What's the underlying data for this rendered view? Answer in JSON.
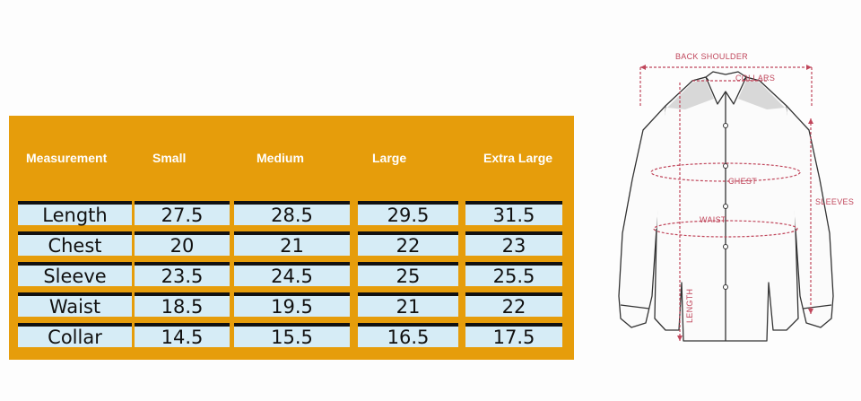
{
  "size_chart": {
    "headers": [
      "Measurement",
      "Small",
      "Medium",
      "Large",
      "Extra Large"
    ],
    "rows": [
      {
        "label": "Length",
        "values": [
          "27.5",
          "28.5",
          "29.5",
          "31.5"
        ]
      },
      {
        "label": "Chest",
        "values": [
          "20",
          "21",
          "22",
          "23"
        ]
      },
      {
        "label": "Sleeve",
        "values": [
          "23.5",
          "24.5",
          "25",
          "25.5"
        ]
      },
      {
        "label": "Waist",
        "values": [
          "18.5",
          "19.5",
          "21",
          "22"
        ]
      },
      {
        "label": "Collar",
        "values": [
          "14.5",
          "15.5",
          "16.5",
          "17.5"
        ]
      }
    ]
  },
  "diagram": {
    "labels": {
      "back_shoulder": "BACK SHOULDER",
      "collars": "COLLARS",
      "chest": "CHEST",
      "waist": "WAIST",
      "sleeves": "SLEEVES",
      "length": "LENGTH"
    }
  },
  "colors": {
    "header_bg": "#e69d0b",
    "cell_bg": "#d6ecf6",
    "measure_line": "#c0465b"
  }
}
